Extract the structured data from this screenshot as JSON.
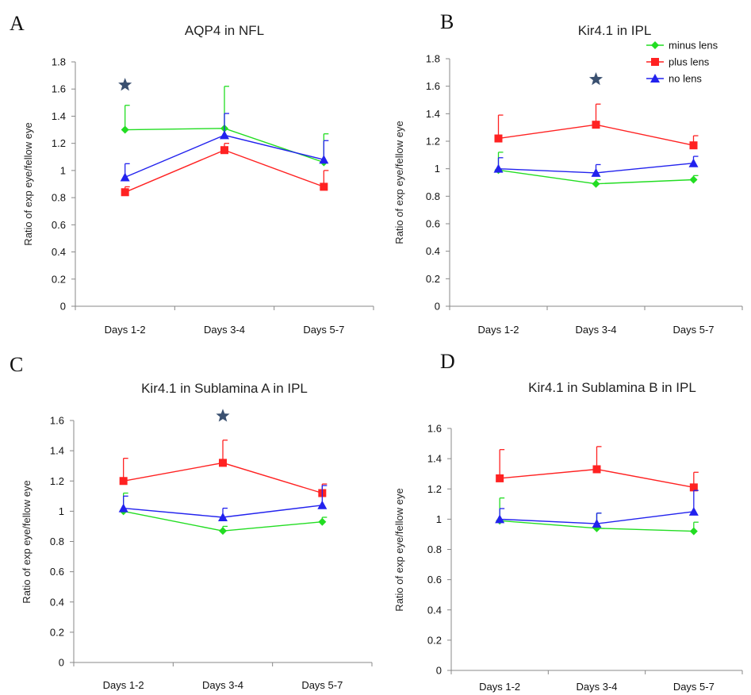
{
  "figure": {
    "background": "#ffffff"
  },
  "series_styles": {
    "minus lens": {
      "color": "#22dd22",
      "marker": "diamond"
    },
    "plus lens": {
      "color": "#ff2222",
      "marker": "square"
    },
    "no lens": {
      "color": "#2222ee",
      "marker": "triangle"
    }
  },
  "star_color": "#3a5070",
  "chart_data": [
    {
      "panel_letter": "A",
      "type": "line",
      "title": "AQP4 in NFL",
      "xlabel": "",
      "ylabel": "Ratio of exp eye/fellow eye",
      "ylim": [
        0,
        1.8
      ],
      "yticks": [
        "0",
        "0.2",
        "0.4",
        "0.6",
        "0.8",
        "1",
        "1.2",
        "1.4",
        "1.6",
        "1.8"
      ],
      "categories": [
        "Days 1-2",
        "Days 3-4",
        "Days 5-7"
      ],
      "series": [
        {
          "name": "minus lens",
          "values": [
            1.3,
            1.31,
            1.06
          ],
          "errors": [
            0.18,
            0.31,
            0.21
          ]
        },
        {
          "name": "plus lens",
          "values": [
            0.84,
            1.15,
            0.88
          ],
          "errors": [
            0.04,
            0.05,
            0.12
          ]
        },
        {
          "name": "no lens",
          "values": [
            0.95,
            1.26,
            1.08
          ],
          "errors": [
            0.1,
            0.16,
            0.14
          ]
        }
      ],
      "significance": [
        {
          "category": "Days 1-2",
          "y": 1.63,
          "marker": "star"
        }
      ],
      "legend": null,
      "grid": false
    },
    {
      "panel_letter": "B",
      "type": "line",
      "title": "Kir4.1 in IPL",
      "xlabel": "",
      "ylabel": "Ratio of exp eye/fellow eye",
      "ylim": [
        0,
        1.8
      ],
      "yticks": [
        "0",
        "0.2",
        "0.4",
        "0.6",
        "0.8",
        "1",
        "1.2",
        "1.4",
        "1.6",
        "1.8"
      ],
      "categories": [
        "Days 1-2",
        "Days 3-4",
        "Days 5-7"
      ],
      "series": [
        {
          "name": "minus lens",
          "values": [
            0.99,
            0.89,
            0.92
          ],
          "errors": [
            0.13,
            0.03,
            0.03
          ]
        },
        {
          "name": "plus lens",
          "values": [
            1.22,
            1.32,
            1.17
          ],
          "errors": [
            0.17,
            0.15,
            0.07
          ]
        },
        {
          "name": "no lens",
          "values": [
            1.0,
            0.97,
            1.04
          ],
          "errors": [
            0.08,
            0.06,
            0.05
          ]
        }
      ],
      "significance": [
        {
          "category": "Days 3-4",
          "y": 1.65,
          "marker": "star"
        }
      ],
      "legend": {
        "placement": "top-right",
        "entries": [
          "minus lens",
          "plus lens",
          "no lens"
        ]
      },
      "grid": false
    },
    {
      "panel_letter": "C",
      "type": "line",
      "title": "Kir4.1 in Sublamina  A  in IPL",
      "xlabel": "",
      "ylabel": "Ratio of exp eye/fellow eye",
      "ylim": [
        0,
        1.6
      ],
      "yticks": [
        "0",
        "0.2",
        "0.4",
        "0.6",
        "0.8",
        "1",
        "1.2",
        "1.4",
        "1.6"
      ],
      "categories": [
        "Days 1-2",
        "Days 3-4",
        "Days 5-7"
      ],
      "series": [
        {
          "name": "minus lens",
          "values": [
            1.0,
            0.87,
            0.93
          ],
          "errors": [
            0.12,
            0.03,
            0.03
          ]
        },
        {
          "name": "plus lens",
          "values": [
            1.2,
            1.32,
            1.12
          ],
          "errors": [
            0.15,
            0.15,
            0.06
          ]
        },
        {
          "name": "no lens",
          "values": [
            1.02,
            0.96,
            1.04
          ],
          "errors": [
            0.08,
            0.06,
            0.13
          ]
        }
      ],
      "significance": [
        {
          "category": "Days 3-4",
          "y": 1.63,
          "marker": "star"
        }
      ],
      "legend": null,
      "grid": false
    },
    {
      "panel_letter": "D",
      "type": "line",
      "title": "Kir4.1 in Sublamina  B  in IPL",
      "xlabel": "",
      "ylabel": "Ratio of exp eye/fellow eye",
      "ylim": [
        0,
        1.6
      ],
      "yticks": [
        "0",
        "0.2",
        "0.4",
        "0.6",
        "0.8",
        "1",
        "1.2",
        "1.4",
        "1.6"
      ],
      "categories": [
        "Days 1-2",
        "Days 3-4",
        "Days 5-7"
      ],
      "series": [
        {
          "name": "minus lens",
          "values": [
            0.99,
            0.94,
            0.92
          ],
          "errors": [
            0.15,
            0.1,
            0.06
          ]
        },
        {
          "name": "plus lens",
          "values": [
            1.27,
            1.33,
            1.21
          ],
          "errors": [
            0.19,
            0.15,
            0.1
          ]
        },
        {
          "name": "no lens",
          "values": [
            1.0,
            0.97,
            1.05
          ],
          "errors": [
            0.07,
            0.07,
            0.14
          ]
        }
      ],
      "significance": [],
      "legend": null,
      "grid": false
    }
  ]
}
